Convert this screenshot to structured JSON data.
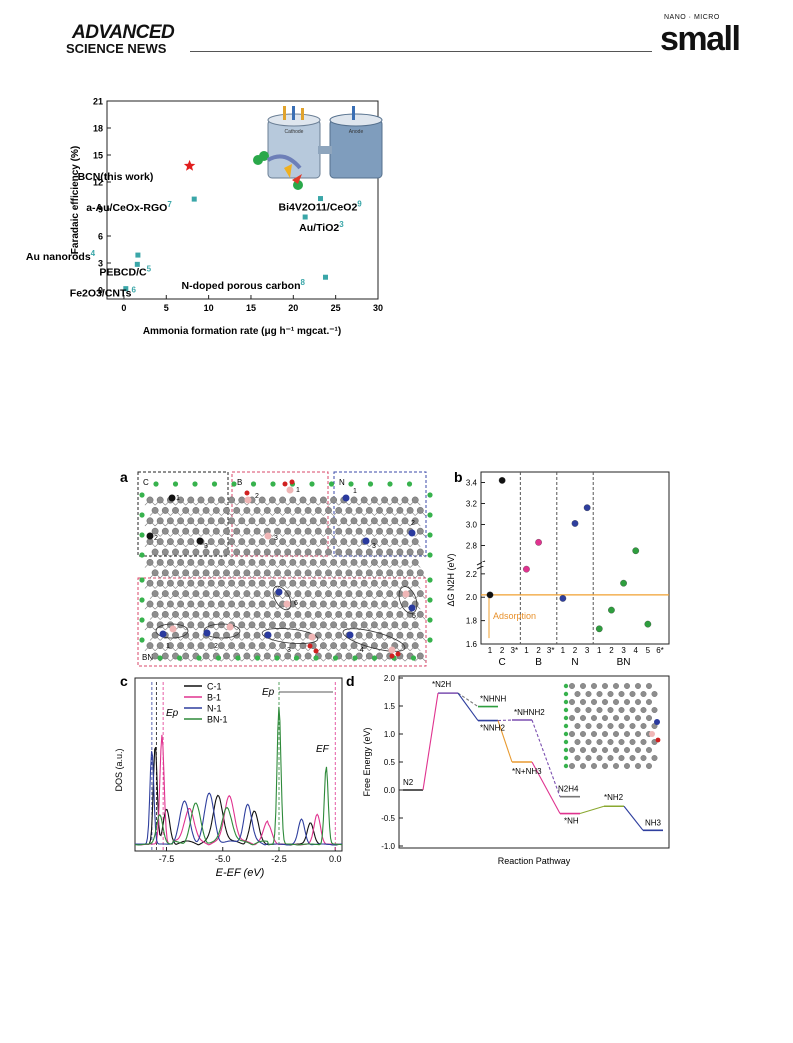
{
  "header": {
    "brand_line1": "ADVANCED",
    "brand_line2": "SCIENCE NEWS",
    "journal_top": "NANO · MICRO",
    "journal_name": "small"
  },
  "figure_top": {
    "ylabel": "Faradaic efficiency (%)",
    "xlabel": "Ammonia formation rate (μg h⁻¹ mgcat.⁻¹)",
    "chart_data": {
      "type": "scatter",
      "xlim": [
        -2,
        30
      ],
      "ylim": [
        -1,
        21
      ],
      "xticks": [
        0,
        5,
        10,
        15,
        20,
        25,
        30
      ],
      "yticks": [
        0,
        3,
        6,
        9,
        12,
        15,
        18,
        21
      ],
      "points": [
        {
          "label": "BCN(this work)",
          "ref": "",
          "x": 7.75,
          "y": 13.79,
          "marker": "star",
          "color": "#e11d1d"
        },
        {
          "label": "a-Au/CeOx-RGO",
          "ref": "7",
          "x": 8.3,
          "y": 10.1,
          "marker": "square",
          "color": "#3aa6a8"
        },
        {
          "label": "Bi4V2O11/CeO2",
          "ref": "9",
          "x": 23.21,
          "y": 10.16,
          "marker": "square",
          "color": "#3aa6a8"
        },
        {
          "label": "Au/TiO2",
          "ref": "3",
          "x": 21.4,
          "y": 8.11,
          "marker": "square",
          "color": "#3aa6a8"
        },
        {
          "label": "Au nanorods",
          "ref": "4",
          "x": 1.65,
          "y": 3.88,
          "marker": "square",
          "color": "#3aa6a8"
        },
        {
          "label": "PEBCD/C",
          "ref": "5",
          "x": 1.58,
          "y": 2.85,
          "marker": "square",
          "color": "#3aa6a8"
        },
        {
          "label": "N-doped porous carbon",
          "ref": "8",
          "x": 23.8,
          "y": 1.42,
          "marker": "square",
          "color": "#3aa6a8"
        },
        {
          "label": "Fe2O3/CNTs",
          "ref": "6",
          "x": 0.22,
          "y": 0.15,
          "marker": "square",
          "color": "#3aa6a8"
        }
      ]
    },
    "inset": {
      "cathode": "Cathode",
      "anode": "Anode"
    }
  },
  "panel_a": {
    "tag": "a",
    "sections": {
      "c": "C",
      "b": "B",
      "n": "N",
      "bn": "BN"
    },
    "site_labels": [
      "1",
      "2",
      "3",
      "4",
      "5",
      "6"
    ]
  },
  "panel_b": {
    "tag": "b",
    "ylabel": "ΔG N2H (eV)",
    "adsorption_label": "Adsorption",
    "chart_data": {
      "type": "scatter",
      "groups": [
        "C",
        "B",
        "N",
        "BN"
      ],
      "categories": [
        "1",
        "2",
        "3*",
        "1",
        "2",
        "3*",
        "1",
        "2",
        "3",
        "1",
        "2",
        "3",
        "4",
        "5",
        "6*"
      ],
      "yticks_top": [
        2.8,
        3.0,
        3.2,
        3.4
      ],
      "yticks_bottom": [
        1.6,
        1.8,
        2.0,
        2.2
      ],
      "reference_line": 2.02,
      "series": [
        {
          "name": "C",
          "color": "#111111",
          "x": [
            1,
            2
          ],
          "y": [
            2.02,
            3.42
          ]
        },
        {
          "name": "B",
          "color": "#e0338f",
          "x": [
            1,
            2
          ],
          "y": [
            2.24,
            2.83
          ]
        },
        {
          "name": "N",
          "color": "#2f3f9e",
          "x": [
            1,
            2,
            3
          ],
          "y": [
            1.99,
            3.01,
            3.16
          ]
        },
        {
          "name": "BN",
          "color": "#2e9e3e",
          "x": [
            1,
            2,
            3,
            4,
            5
          ],
          "y": [
            1.73,
            1.89,
            2.12,
            2.75,
            1.77
          ]
        }
      ]
    }
  },
  "panel_c": {
    "tag": "c",
    "ylabel": "DOS (a.u.)",
    "xlabel": "E-EF (eV)",
    "ep_label": "Ep",
    "ef_label": "EF",
    "chart_data": {
      "type": "line",
      "xlim": [
        -8.9,
        0.3
      ],
      "xticks": [
        -7.5,
        -5.0,
        -2.5,
        0.0
      ],
      "series": [
        {
          "name": "C-1",
          "color": "#111111"
        },
        {
          "name": "B-1",
          "color": "#e0338f"
        },
        {
          "name": "N-1",
          "color": "#2f3f9e"
        },
        {
          "name": "BN-1",
          "color": "#2e8a3a"
        }
      ]
    }
  },
  "panel_d": {
    "tag": "d",
    "ylabel": "Free Energy (eV)",
    "xlabel": "Reaction Pathway",
    "chart_data": {
      "type": "line",
      "ylim": [
        -1.0,
        2.0
      ],
      "yticks": [
        -1.0,
        -0.5,
        0.0,
        0.5,
        1.0,
        1.5,
        2.0
      ],
      "states": [
        {
          "label": "N2",
          "energy": 0.0
        },
        {
          "label": "*N2H",
          "energy": 1.73
        },
        {
          "label": "*NHNH",
          "energy": 1.49
        },
        {
          "label": "*NNH2",
          "energy": 1.24
        },
        {
          "label": "*NHNH2",
          "energy": 1.25
        },
        {
          "label": "*N+NH3",
          "energy": 0.5
        },
        {
          "label": "N2H4",
          "energy": -0.12
        },
        {
          "label": "*NH",
          "energy": -0.42
        },
        {
          "label": "*NH2",
          "energy": -0.29
        },
        {
          "label": "NH3",
          "energy": -0.72
        }
      ]
    }
  }
}
